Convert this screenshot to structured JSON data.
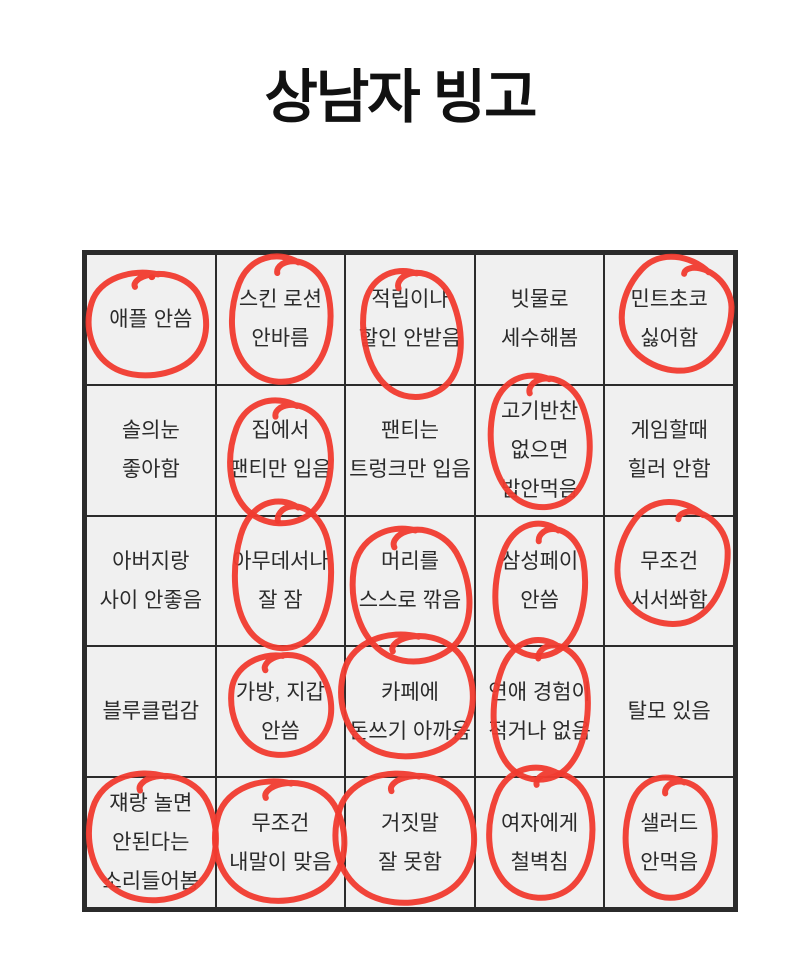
{
  "title": "상남자 빙고",
  "colors": {
    "page_background": "#ffffff",
    "title_text": "#111111",
    "grid_line": "#2b2b2b",
    "cell_background": "#f0f0f0",
    "cell_text": "#2b2b2b",
    "mark_red": "#f23b30"
  },
  "board": {
    "rows": 5,
    "cols": 5,
    "cells": [
      [
        {
          "lines": [
            "애플 안씀"
          ],
          "circled": true
        },
        {
          "lines": [
            "스킨 로션",
            "안바름"
          ],
          "circled": true
        },
        {
          "lines": [
            "적립이나",
            "할인 안받음"
          ],
          "circled": true
        },
        {
          "lines": [
            "빗물로",
            "세수해봄"
          ],
          "circled": false
        },
        {
          "lines": [
            "민트초코",
            "싫어함"
          ],
          "circled": true
        }
      ],
      [
        {
          "lines": [
            "솔의눈",
            "좋아함"
          ],
          "circled": false
        },
        {
          "lines": [
            "집에서",
            "팬티만 입음"
          ],
          "circled": true
        },
        {
          "lines": [
            "팬티는",
            "트렁크만 입음"
          ],
          "circled": false
        },
        {
          "lines": [
            "고기반찬",
            "없으면",
            "밥안먹음"
          ],
          "circled": true
        },
        {
          "lines": [
            "게임할때",
            "힐러 안함"
          ],
          "circled": false
        }
      ],
      [
        {
          "lines": [
            "아버지랑",
            "사이 안좋음"
          ],
          "circled": false
        },
        {
          "lines": [
            "아무데서나",
            "잘 잠"
          ],
          "circled": true
        },
        {
          "lines": [
            "머리를",
            "스스로 깎음"
          ],
          "circled": true
        },
        {
          "lines": [
            "삼성페이",
            "안씀"
          ],
          "circled": true
        },
        {
          "lines": [
            "무조건",
            "서서쏴함"
          ],
          "circled": true
        }
      ],
      [
        {
          "lines": [
            "블루클럽감"
          ],
          "circled": false
        },
        {
          "lines": [
            "가방, 지갑",
            "안씀"
          ],
          "circled": true
        },
        {
          "lines": [
            "카페에",
            "돈쓰기 아까움"
          ],
          "circled": true
        },
        {
          "lines": [
            "연애 경험이",
            "적거나 없음"
          ],
          "circled": true
        },
        {
          "lines": [
            "탈모 있음"
          ],
          "circled": false
        }
      ],
      [
        {
          "lines": [
            "쟤랑 놀면",
            "안된다는",
            "소리들어봄"
          ],
          "circled": true
        },
        {
          "lines": [
            "무조건",
            "내말이 맞음"
          ],
          "circled": true
        },
        {
          "lines": [
            "거짓말",
            "잘 못함"
          ],
          "circled": true
        },
        {
          "lines": [
            "여자에게",
            "철벽침"
          ],
          "circled": true
        },
        {
          "lines": [
            "샐러드",
            "안먹음"
          ],
          "circled": true
        }
      ]
    ]
  }
}
